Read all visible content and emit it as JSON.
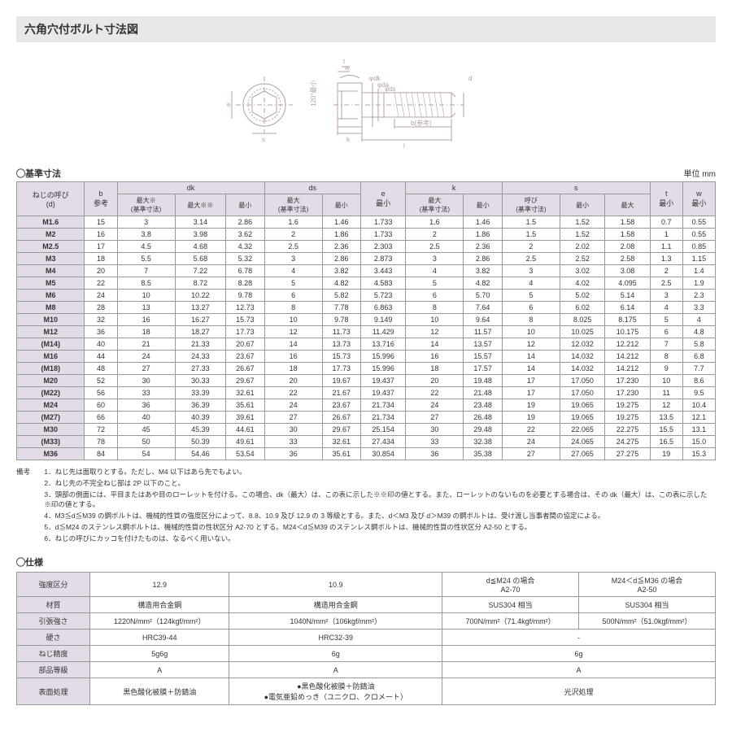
{
  "title": "六角穴付ボルト寸法図",
  "diagram": {
    "top_label": "120°最小",
    "left_labels": [
      "e",
      "s"
    ],
    "right_labels": [
      "t",
      "w",
      "d",
      "φdk",
      "φda",
      "φds",
      "b(参考)",
      "k",
      "l"
    ],
    "stroke": "#b5a0a6"
  },
  "dim_section_label": "◯基準寸法",
  "unit_label": "単位 mm",
  "dim_headers": {
    "row1": [
      "ねじの呼び\n(d)",
      "b\n参考",
      "dk",
      "ds",
      "e\n最小",
      "k",
      "s",
      "t\n最小",
      "w\n最小"
    ],
    "dk_sub": [
      "最大※\n(基準寸法)",
      "最大※※",
      "最小"
    ],
    "ds_sub": [
      "最大\n(基準寸法)",
      "最小"
    ],
    "k_sub": [
      "最大\n(基準寸法)",
      "最小"
    ],
    "s_sub": [
      "呼び\n(基準寸法)",
      "最小",
      "最大"
    ]
  },
  "dim_rows": [
    [
      "M1.6",
      "15",
      "3",
      "3.14",
      "2.86",
      "1.6",
      "1.46",
      "1.733",
      "1.6",
      "1.46",
      "1.5",
      "1.52",
      "1.58",
      "0.7",
      "0.55"
    ],
    [
      "M2",
      "16",
      "3.8",
      "3.98",
      "3.62",
      "2",
      "1.86",
      "1.733",
      "2",
      "1.86",
      "1.5",
      "1.52",
      "1.58",
      "1",
      "0.55"
    ],
    [
      "M2.5",
      "17",
      "4.5",
      "4.68",
      "4.32",
      "2.5",
      "2.36",
      "2.303",
      "2.5",
      "2.36",
      "2",
      "2.02",
      "2.08",
      "1.1",
      "0.85"
    ],
    [
      "M3",
      "18",
      "5.5",
      "5.68",
      "5.32",
      "3",
      "2.86",
      "2.873",
      "3",
      "2.86",
      "2.5",
      "2.52",
      "2.58",
      "1.3",
      "1.15"
    ],
    [
      "M4",
      "20",
      "7",
      "7.22",
      "6.78",
      "4",
      "3.82",
      "3.443",
      "4",
      "3.82",
      "3",
      "3.02",
      "3.08",
      "2",
      "1.4"
    ],
    [
      "M5",
      "22",
      "8.5",
      "8.72",
      "8.28",
      "5",
      "4.82",
      "4.583",
      "5",
      "4.82",
      "4",
      "4.02",
      "4.095",
      "2.5",
      "1.9"
    ],
    [
      "M6",
      "24",
      "10",
      "10.22",
      "9.78",
      "6",
      "5.82",
      "5.723",
      "6",
      "5.70",
      "5",
      "5.02",
      "5.14",
      "3",
      "2.3"
    ],
    [
      "M8",
      "28",
      "13",
      "13.27",
      "12.73",
      "8",
      "7.78",
      "6.863",
      "8",
      "7.64",
      "6",
      "6.02",
      "6.14",
      "4",
      "3.3"
    ],
    [
      "M10",
      "32",
      "16",
      "16.27",
      "15.73",
      "10",
      "9.78",
      "9.149",
      "10",
      "9.64",
      "8",
      "8.025",
      "8.175",
      "5",
      "4"
    ],
    [
      "M12",
      "36",
      "18",
      "18.27",
      "17.73",
      "12",
      "11.73",
      "11.429",
      "12",
      "11.57",
      "10",
      "10.025",
      "10.175",
      "6",
      "4.8"
    ],
    [
      "(M14)",
      "40",
      "21",
      "21.33",
      "20.67",
      "14",
      "13.73",
      "13.716",
      "14",
      "13.57",
      "12",
      "12.032",
      "12.212",
      "7",
      "5.8"
    ],
    [
      "M16",
      "44",
      "24",
      "24.33",
      "23.67",
      "16",
      "15.73",
      "15.996",
      "16",
      "15.57",
      "14",
      "14.032",
      "14.212",
      "8",
      "6.8"
    ],
    [
      "(M18)",
      "48",
      "27",
      "27.33",
      "26.67",
      "18",
      "17.73",
      "15.996",
      "18",
      "17.57",
      "14",
      "14.032",
      "14.212",
      "9",
      "7.7"
    ],
    [
      "M20",
      "52",
      "30",
      "30.33",
      "29.67",
      "20",
      "19.67",
      "19.437",
      "20",
      "19.48",
      "17",
      "17.050",
      "17.230",
      "10",
      "8.6"
    ],
    [
      "(M22)",
      "56",
      "33",
      "33.39",
      "32.61",
      "22",
      "21.67",
      "19.437",
      "22",
      "21.48",
      "17",
      "17.050",
      "17.230",
      "11",
      "9.5"
    ],
    [
      "M24",
      "60",
      "36",
      "36.39",
      "35.61",
      "24",
      "23.67",
      "21.734",
      "24",
      "23.48",
      "19",
      "19.065",
      "19.275",
      "12",
      "10.4"
    ],
    [
      "(M27)",
      "66",
      "40",
      "40.39",
      "39.61",
      "27",
      "26.67",
      "21.734",
      "27",
      "26.48",
      "19",
      "19.065",
      "19.275",
      "13.5",
      "12.1"
    ],
    [
      "M30",
      "72",
      "45",
      "45.39",
      "44.61",
      "30",
      "29.67",
      "25.154",
      "30",
      "29.48",
      "22",
      "22.065",
      "22.275",
      "15.5",
      "13.1"
    ],
    [
      "(M33)",
      "78",
      "50",
      "50.39",
      "49.61",
      "33",
      "32.61",
      "27.434",
      "33",
      "32.38",
      "24",
      "24.065",
      "24.275",
      "16.5",
      "15.0"
    ],
    [
      "M36",
      "84",
      "54",
      "54.46",
      "53.54",
      "36",
      "35.61",
      "30.854",
      "36",
      "35.38",
      "27",
      "27.065",
      "27.275",
      "19",
      "15.3"
    ]
  ],
  "notes_label": "備考",
  "notes": [
    "1．ねじ先は面取りとする。ただし、M4 以下はあら先でもよい。",
    "2．ねじ先の不完全ねじ部は 2P 以下のこと。",
    "3．頭部の側面には、平目またはあや目のローレットを付ける。この場合、dk（最大）は、この表に示した※※印の値とする。また、ローレットのないものを必要とする場合は、その dk（最大）は、この表に示した※印の値とする。",
    "4．M3≦d≦M39 の鋼ボルトは、機械的性質の強度区分によって、8.8、10.9 及び 12.9 の 3 等級とする。また、d＜M3 及び d＞M39 の鋼ボルトは、受け渡し当事者間の協定による。",
    "5．d≦M24 のステンレス鋼ボルトは、機械的性質の性状区分 A2-70 とする。M24＜d≦M39 のステンレス鋼ボルトは、機械的性質の性状区分 A2-50 とする。",
    "6．ねじの呼びにカッコを付けたものは、なるべく用いない。"
  ],
  "spec_section_label": "◯仕様",
  "spec": {
    "headers": [
      "強度区分",
      "材質",
      "引張強さ",
      "硬さ",
      "ねじ精度",
      "部品等級",
      "表面処理"
    ],
    "col_headers": [
      "12.9",
      "10.9",
      "d≦M24 の場合\nA2-70",
      "M24＜d≦M36 の場合\nA2-50"
    ],
    "rows": [
      [
        "構造用合金鋼",
        "構造用合金鋼",
        "SUS304 相当",
        "SUS304 相当"
      ],
      [
        "1220N/mm²（124kgf/mm²）",
        "1040N/mm²（106kgf/mm²）",
        "700N/mm²（71.4kgf/mm²）",
        "500N/mm²（51.0kgf/mm²）"
      ],
      [
        "HRC39-44",
        "HRC32-39",
        "-",
        ""
      ],
      [
        "5g6g",
        "6g",
        "6g",
        ""
      ],
      [
        "A",
        "A",
        "A",
        ""
      ],
      [
        "黒色酸化被膜＋防錆油",
        "●黒色酸化被膜＋防錆油\n●電気亜鉛めっき（ユニクロ、クロメート）",
        "光沢処理",
        ""
      ]
    ],
    "merge_col34": [
      false,
      false,
      true,
      true,
      true,
      true
    ]
  }
}
